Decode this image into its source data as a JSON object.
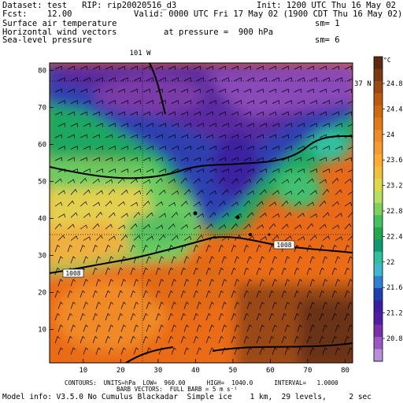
{
  "header": {
    "line1_left": "Dataset: test   RIP: rip20020516_d3",
    "line1_right": "Init: 1200 UTC Thu 16 May 02",
    "line2_left": "Fcst:    12.00",
    "line2_right": "Valid: 0000 UTC Fri 17 May 02 (1900 CDT Thu 16 May 02)",
    "line3_left": "Surface air temperature",
    "line3_right": "sm= 1",
    "line4_left": "Horizontal wind vectors",
    "line4_mid": "at pressure =  900 hPa",
    "line5_left": "Sea-level pressure",
    "line5_right": "sm= 6"
  },
  "map": {
    "meridian_label": "101 W",
    "parallel_label": "37 N",
    "x_ticks": [
      "10",
      "20",
      "30",
      "40",
      "50",
      "60",
      "70",
      "80"
    ],
    "y_ticks": [
      "10",
      "20",
      "30",
      "40",
      "50",
      "60",
      "70",
      "80"
    ],
    "contour_labels": [
      "1008",
      "1008"
    ]
  },
  "colorbar": {
    "unit": "°C",
    "labels": [
      "24.8",
      "24.4",
      "24",
      "23.6",
      "23.2",
      "22.8",
      "22.4",
      "22",
      "21.6",
      "21.2",
      "20.8"
    ],
    "colors": [
      "#5a2b10",
      "#7a3a12",
      "#9a4a12",
      "#b85a10",
      "#d06a10",
      "#e07a18",
      "#ef8a28",
      "#f59a30",
      "#ffaa30",
      "#f0c040",
      "#e0d848",
      "#b8e060",
      "#80d060",
      "#48c060",
      "#20a850",
      "#109870",
      "#30c0a0",
      "#40b8d0",
      "#3080d0",
      "#2040b0",
      "#3a20a0",
      "#5020a0",
      "#7a30a8",
      "#9a58c0",
      "#b890d8"
    ]
  },
  "footer": {
    "line1": "CONTOURS:  UNITS=hPa  LOW=  960.00      HIGH=  1040.0      INTERVAL=   1.0000",
    "line2": "BARB VECTORS:  FULL BARB = 5 m s⁻¹",
    "line3": "Model info: V3.5.0 No Cumulus Blackadar  Simple ice    1 km,  29 levels,     2 sec"
  }
}
